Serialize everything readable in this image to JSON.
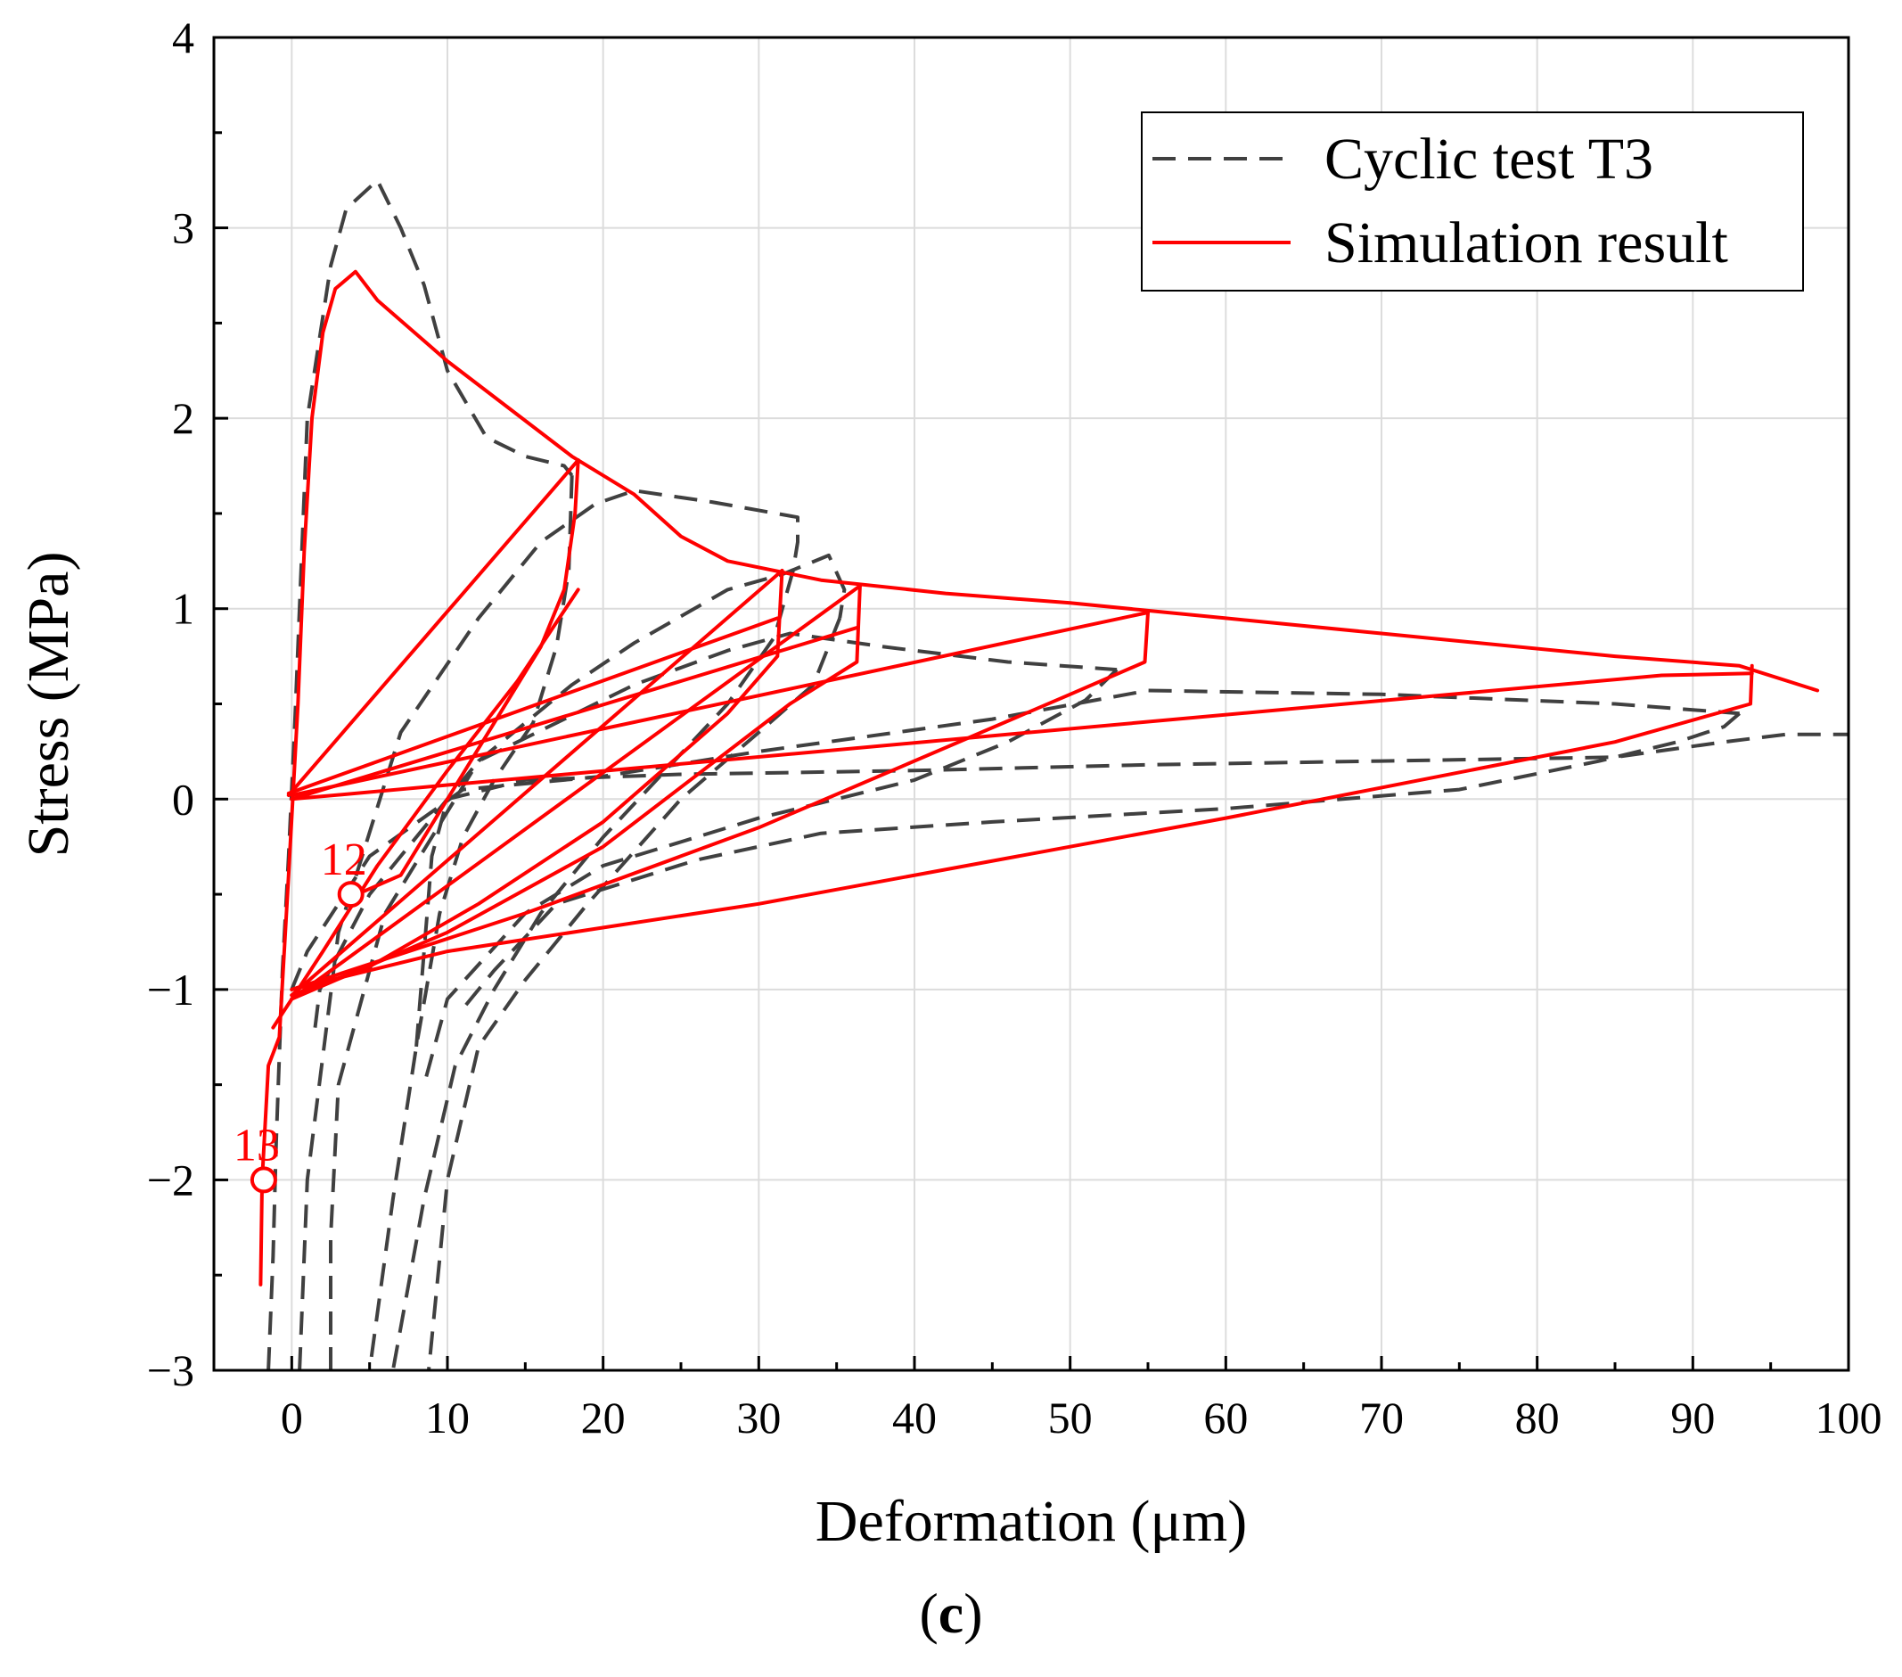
{
  "chart_data": {
    "type": "line",
    "title": "",
    "xlabel": "Deformation (μm)",
    "ylabel": "Stress (MPa)",
    "xlim": [
      -5,
      100
    ],
    "ylim": [
      -3,
      4
    ],
    "xticks": [
      0,
      10,
      20,
      30,
      40,
      50,
      60,
      70,
      80,
      90,
      100
    ],
    "yticks": [
      -3,
      -2,
      -1,
      0,
      1,
      2,
      3,
      4
    ],
    "xtick_labels": [
      "0",
      "10",
      "20",
      "30",
      "40",
      "50",
      "60",
      "70",
      "80",
      "90",
      "100"
    ],
    "ytick_labels": [
      "−3",
      "−2",
      "−1",
      "0",
      "1",
      "2",
      "3",
      "4"
    ],
    "grid": true,
    "legend_position": "top-right",
    "series": [
      {
        "name": "Cyclic test T3",
        "style": "dashed",
        "color": "#404040",
        "segments": [
          [
            [
              -1.5,
              -3.0
            ],
            [
              -1.2,
              -2.4
            ],
            [
              -1.0,
              -1.8
            ],
            [
              -0.6,
              -0.9
            ],
            [
              -0.2,
              -0.3
            ],
            [
              0.2,
              0.4
            ],
            [
              0.6,
              1.2
            ],
            [
              1.0,
              2.0
            ],
            [
              2.5,
              2.8
            ],
            [
              3.5,
              3.1
            ],
            [
              5.5,
              3.25
            ],
            [
              7,
              3.0
            ],
            [
              8.5,
              2.7
            ],
            [
              10,
              2.25
            ],
            [
              12.5,
              1.9
            ],
            [
              15,
              1.8
            ],
            [
              17.5,
              1.75
            ],
            [
              18,
              1.7
            ]
          ],
          [
            [
              18,
              1.7
            ],
            [
              17.8,
              1.2
            ],
            [
              17,
              0.8
            ],
            [
              15.5,
              0.4
            ],
            [
              13,
              0.1
            ],
            [
              11,
              -0.2
            ],
            [
              9.5,
              -0.6
            ],
            [
              8,
              -1.3
            ],
            [
              6.5,
              -2.1
            ],
            [
              5,
              -3.0
            ]
          ],
          [
            [
              0.5,
              -3.0
            ],
            [
              1,
              -2.0
            ],
            [
              3,
              -0.7
            ],
            [
              7,
              0.35
            ],
            [
              12,
              0.95
            ],
            [
              16,
              1.35
            ],
            [
              19.5,
              1.55
            ],
            [
              22,
              1.62
            ],
            [
              27,
              1.56
            ],
            [
              32.5,
              1.48
            ],
            [
              32.5,
              1.35
            ],
            [
              32.2,
              1.2
            ]
          ],
          [
            [
              32.2,
              1.2
            ],
            [
              31,
              0.85
            ],
            [
              28,
              0.5
            ],
            [
              24,
              0.15
            ],
            [
              20,
              -0.2
            ],
            [
              16,
              -0.6
            ],
            [
              13,
              -1.0
            ],
            [
              10.5,
              -1.4
            ],
            [
              8.5,
              -2.1
            ],
            [
              6.5,
              -3.0
            ]
          ],
          [
            [
              2.5,
              -3.0
            ],
            [
              2.5,
              -2.3
            ],
            [
              3,
              -1.5
            ],
            [
              6,
              -0.6
            ],
            [
              12,
              0.2
            ],
            [
              18,
              0.6
            ],
            [
              22,
              0.82
            ],
            [
              28,
              1.1
            ],
            [
              31.5,
              1.18
            ],
            [
              34.5,
              1.28
            ],
            [
              35.5,
              1.1
            ],
            [
              35.2,
              0.95
            ]
          ],
          [
            [
              35.2,
              0.95
            ],
            [
              33.5,
              0.6
            ],
            [
              30,
              0.35
            ],
            [
              25,
              0.0
            ],
            [
              19,
              -0.55
            ],
            [
              15,
              -0.95
            ],
            [
              12,
              -1.3
            ],
            [
              10,
              -2.0
            ],
            [
              8.8,
              -3.0
            ]
          ],
          [
            [
              1.5,
              -1.2
            ],
            [
              1.8,
              -1.0
            ],
            [
              5,
              -0.5
            ],
            [
              12,
              0.2
            ],
            [
              22,
              0.6
            ],
            [
              28,
              0.78
            ],
            [
              32,
              0.87
            ],
            [
              38,
              0.8
            ],
            [
              46,
              0.72
            ],
            [
              53,
              0.68
            ]
          ],
          [
            [
              53,
              0.68
            ],
            [
              51,
              0.52
            ],
            [
              46,
              0.3
            ],
            [
              40,
              0.1
            ],
            [
              30,
              -0.1
            ],
            [
              20,
              -0.35
            ],
            [
              15,
              -0.6
            ],
            [
              10,
              -1.05
            ],
            [
              8.5,
              -1.5
            ]
          ],
          [
            [
              0,
              -1.0
            ],
            [
              1,
              -0.8
            ],
            [
              5,
              -0.3
            ],
            [
              11,
              0.05
            ],
            [
              20,
              0.12
            ],
            [
              30,
              0.25
            ],
            [
              45,
              0.42
            ],
            [
              55,
              0.57
            ],
            [
              70,
              0.55
            ],
            [
              85,
              0.5
            ],
            [
              93,
              0.45
            ]
          ],
          [
            [
              93,
              0.45
            ],
            [
              92,
              0.38
            ],
            [
              89,
              0.3
            ],
            [
              84,
              0.2
            ],
            [
              75,
              0.05
            ],
            [
              60,
              -0.05
            ],
            [
              45,
              -0.12
            ],
            [
              34,
              -0.18
            ],
            [
              26,
              -0.32
            ],
            [
              17,
              -0.55
            ],
            [
              13,
              -0.9
            ],
            [
              11,
              -1.1
            ]
          ],
          [
            [
              8,
              -1.3
            ],
            [
              9,
              -0.3
            ],
            [
              10,
              0.0
            ],
            [
              15,
              0.1
            ],
            [
              25,
              0.13
            ],
            [
              40,
              0.15
            ],
            [
              55,
              0.18
            ],
            [
              70,
              0.2
            ],
            [
              85,
              0.22
            ],
            [
              92,
              0.3
            ],
            [
              96,
              0.34
            ],
            [
              100,
              0.34
            ]
          ]
        ]
      },
      {
        "name": "Simulation result",
        "style": "solid",
        "color": "#ff0000",
        "segments": [
          [
            [
              -2,
              -2.55
            ],
            [
              -1.9,
              -2.0
            ],
            [
              -1.5,
              -1.4
            ],
            [
              -0.8,
              -1.25
            ],
            [
              -0.2,
              -0.4
            ],
            [
              0.4,
              0.5
            ],
            [
              0.8,
              1.3
            ],
            [
              1.3,
              2.0
            ],
            [
              2.0,
              2.45
            ],
            [
              2.8,
              2.68
            ],
            [
              4.1,
              2.77
            ],
            [
              5.5,
              2.62
            ],
            [
              10,
              2.3
            ],
            [
              18,
              1.8
            ],
            [
              22,
              1.6
            ],
            [
              25,
              1.38
            ],
            [
              28,
              1.25
            ],
            [
              34,
              1.15
            ],
            [
              42,
              1.08
            ],
            [
              50,
              1.03
            ],
            [
              60,
              0.95
            ],
            [
              70,
              0.87
            ],
            [
              85,
              0.75
            ],
            [
              93,
              0.7
            ],
            [
              98,
              0.57
            ]
          ],
          [
            [
              18.4,
              1.78
            ],
            [
              18.2,
              1.5
            ],
            [
              17.5,
              1.1
            ],
            [
              16,
              0.8
            ],
            [
              13,
              0.4
            ],
            [
              10,
              0.0
            ],
            [
              7,
              -0.4
            ],
            [
              4.2,
              -0.5
            ]
          ],
          [
            [
              -0.2,
              0.02
            ],
            [
              18.4,
              1.78
            ]
          ],
          [
            [
              -1.2,
              -1.2
            ],
            [
              2,
              -0.8
            ],
            [
              5.5,
              -0.35
            ],
            [
              10,
              0.15
            ],
            [
              14.5,
              0.62
            ],
            [
              18.4,
              1.1
            ]
          ],
          [
            [
              31.5,
              1.2
            ],
            [
              31.2,
              0.75
            ],
            [
              28,
              0.45
            ],
            [
              20,
              -0.12
            ],
            [
              12,
              -0.55
            ],
            [
              5,
              -0.88
            ],
            [
              0,
              -1.03
            ]
          ],
          [
            [
              0,
              -1.03
            ],
            [
              31.5,
              1.2
            ]
          ],
          [
            [
              -0.2,
              0.03
            ],
            [
              31.2,
              0.95
            ]
          ],
          [
            [
              36.5,
              1.12
            ],
            [
              36.3,
              0.72
            ],
            [
              32,
              0.5
            ],
            [
              20,
              -0.25
            ],
            [
              10,
              -0.7
            ],
            [
              0,
              -1.05
            ]
          ],
          [
            [
              0,
              -1.05
            ],
            [
              36.5,
              1.12
            ]
          ],
          [
            [
              0,
              0.0
            ],
            [
              36.3,
              0.9
            ]
          ],
          [
            [
              55,
              0.98
            ],
            [
              54.8,
              0.72
            ],
            [
              50,
              0.55
            ],
            [
              30,
              -0.15
            ],
            [
              15,
              -0.6
            ],
            [
              0,
              -1.0
            ]
          ],
          [
            [
              0,
              0.02
            ],
            [
              55,
              0.98
            ]
          ],
          [
            [
              93.8,
              0.7
            ],
            [
              93.7,
              0.5
            ],
            [
              85,
              0.3
            ],
            [
              60,
              -0.1
            ],
            [
              30,
              -0.55
            ],
            [
              10,
              -0.8
            ],
            [
              0,
              -1.0
            ]
          ],
          [
            [
              0,
              0.0
            ],
            [
              88,
              0.65
            ],
            [
              93.8,
              0.66
            ]
          ]
        ]
      }
    ],
    "annotations": [
      {
        "text": "12",
        "x": 3.8,
        "y": -0.5,
        "color": "#ff0000"
      },
      {
        "text": "13",
        "x": -1.8,
        "y": -2.0,
        "color": "#ff0000"
      }
    ]
  },
  "panel_label": "c",
  "panel_label_open": "(",
  "panel_label_close": ")"
}
